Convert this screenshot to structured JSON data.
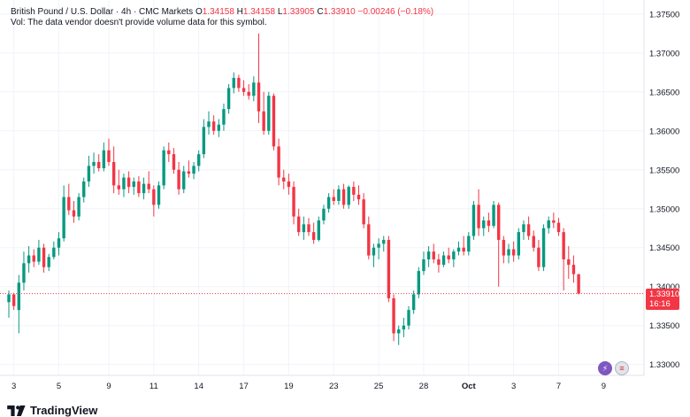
{
  "legend": {
    "title": "British Pound / U.S. Dollar · 4h · CMC Markets",
    "open_label": "O",
    "open": "1.34158",
    "high_label": "H",
    "high": "1.34158",
    "low_label": "L",
    "low": "1.33905",
    "close_label": "C",
    "close": "1.33910",
    "change": "−0.00246 (−0.18%)"
  },
  "volume_note": "Vol: The data vendor doesn't provide volume data for this symbol.",
  "current_price": {
    "value": "1.33910",
    "countdown": "16:16"
  },
  "brand": "TradingView",
  "colors": {
    "up": "#089981",
    "down": "#f23645",
    "grid": "#f0f3fa",
    "axis_text": "#131722"
  },
  "icons": {
    "lightning": "lightning-icon",
    "flag": "uk-us-flag-icon"
  },
  "chart_data": {
    "type": "candlestick",
    "symbol": "GBPUSD",
    "interval": "4h",
    "y_ticks": [
      "1.33000",
      "1.33500",
      "1.34000",
      "1.34500",
      "1.35000",
      "1.35500",
      "1.36000",
      "1.36500",
      "1.37000",
      "1.37500"
    ],
    "ylim": [
      1.3286,
      1.3768
    ],
    "x_ticks": [
      {
        "label": "3",
        "index": 1
      },
      {
        "label": "5",
        "index": 10
      },
      {
        "label": "9",
        "index": 20
      },
      {
        "label": "11",
        "index": 29
      },
      {
        "label": "14",
        "index": 38
      },
      {
        "label": "17",
        "index": 47
      },
      {
        "label": "19",
        "index": 56
      },
      {
        "label": "23",
        "index": 65
      },
      {
        "label": "25",
        "index": 74
      },
      {
        "label": "28",
        "index": 83
      },
      {
        "label": "Oct",
        "index": 92
      },
      {
        "label": "3",
        "index": 101
      },
      {
        "label": "7",
        "index": 110
      },
      {
        "label": "9",
        "index": 119
      }
    ],
    "candles": [
      [
        1.338,
        1.3395,
        1.336,
        1.339
      ],
      [
        1.339,
        1.3392,
        1.337,
        1.3375
      ],
      [
        1.337,
        1.3415,
        1.334,
        1.3405
      ],
      [
        1.3405,
        1.3445,
        1.3395,
        1.343
      ],
      [
        1.343,
        1.3452,
        1.3418,
        1.344
      ],
      [
        1.344,
        1.3448,
        1.3425,
        1.3432
      ],
      [
        1.3432,
        1.346,
        1.3428,
        1.345
      ],
      [
        1.345,
        1.3455,
        1.3418,
        1.3425
      ],
      [
        1.3425,
        1.3442,
        1.342,
        1.3438
      ],
      [
        1.3438,
        1.3458,
        1.3435,
        1.345
      ],
      [
        1.345,
        1.347,
        1.344,
        1.3462
      ],
      [
        1.3462,
        1.353,
        1.3458,
        1.3515
      ],
      [
        1.3515,
        1.3532,
        1.3492,
        1.3498
      ],
      [
        1.3498,
        1.351,
        1.3482,
        1.349
      ],
      [
        1.349,
        1.352,
        1.3485,
        1.3515
      ],
      [
        1.3515,
        1.354,
        1.3508,
        1.3535
      ],
      [
        1.3535,
        1.3568,
        1.3528,
        1.3555
      ],
      [
        1.3555,
        1.3572,
        1.3545,
        1.356
      ],
      [
        1.356,
        1.357,
        1.3548,
        1.3552
      ],
      [
        1.3552,
        1.3585,
        1.3548,
        1.3575
      ],
      [
        1.3575,
        1.359,
        1.3555,
        1.356
      ],
      [
        1.356,
        1.358,
        1.352,
        1.353
      ],
      [
        1.353,
        1.355,
        1.3518,
        1.3525
      ],
      [
        1.3525,
        1.3545,
        1.3515,
        1.354
      ],
      [
        1.354,
        1.3548,
        1.352,
        1.3528
      ],
      [
        1.3528,
        1.354,
        1.3518,
        1.3535
      ],
      [
        1.3535,
        1.3542,
        1.3515,
        1.352
      ],
      [
        1.352,
        1.354,
        1.3512,
        1.3532
      ],
      [
        1.3532,
        1.3548,
        1.352,
        1.3525
      ],
      [
        1.3525,
        1.353,
        1.349,
        1.3505
      ],
      [
        1.3505,
        1.3535,
        1.35,
        1.353
      ],
      [
        1.353,
        1.358,
        1.3525,
        1.3575
      ],
      [
        1.3575,
        1.3585,
        1.356,
        1.357
      ],
      [
        1.357,
        1.3578,
        1.3545,
        1.355
      ],
      [
        1.355,
        1.356,
        1.3518,
        1.3525
      ],
      [
        1.3525,
        1.3555,
        1.352,
        1.3548
      ],
      [
        1.3548,
        1.3562,
        1.354,
        1.3545
      ],
      [
        1.3545,
        1.356,
        1.3538,
        1.3555
      ],
      [
        1.3555,
        1.3575,
        1.3548,
        1.357
      ],
      [
        1.357,
        1.3615,
        1.3565,
        1.3605
      ],
      [
        1.3605,
        1.3625,
        1.3595,
        1.3612
      ],
      [
        1.3612,
        1.362,
        1.3595,
        1.36
      ],
      [
        1.36,
        1.3615,
        1.3592,
        1.3608
      ],
      [
        1.3608,
        1.3635,
        1.36,
        1.3628
      ],
      [
        1.3628,
        1.366,
        1.3622,
        1.3655
      ],
      [
        1.3655,
        1.3675,
        1.3648,
        1.3668
      ],
      [
        1.3668,
        1.3672,
        1.365,
        1.3655
      ],
      [
        1.3655,
        1.3665,
        1.3645,
        1.365
      ],
      [
        1.365,
        1.366,
        1.364,
        1.3645
      ],
      [
        1.3645,
        1.367,
        1.3638,
        1.3662
      ],
      [
        1.3662,
        1.3725,
        1.361,
        1.3625
      ],
      [
        1.3625,
        1.365,
        1.3595,
        1.36
      ],
      [
        1.36,
        1.365,
        1.3595,
        1.3645
      ],
      [
        1.3645,
        1.3648,
        1.3575,
        1.358
      ],
      [
        1.358,
        1.359,
        1.353,
        1.354
      ],
      [
        1.354,
        1.355,
        1.3525,
        1.3535
      ],
      [
        1.3535,
        1.3545,
        1.3518,
        1.3528
      ],
      [
        1.3528,
        1.3535,
        1.348,
        1.349
      ],
      [
        1.349,
        1.35,
        1.3465,
        1.347
      ],
      [
        1.347,
        1.349,
        1.346,
        1.348
      ],
      [
        1.348,
        1.3488,
        1.3465,
        1.347
      ],
      [
        1.347,
        1.3482,
        1.3455,
        1.346
      ],
      [
        1.346,
        1.349,
        1.3458,
        1.3485
      ],
      [
        1.3485,
        1.3505,
        1.348,
        1.35
      ],
      [
        1.35,
        1.352,
        1.3495,
        1.3515
      ],
      [
        1.3515,
        1.3525,
        1.3505,
        1.351
      ],
      [
        1.351,
        1.353,
        1.3505,
        1.3525
      ],
      [
        1.3525,
        1.3532,
        1.35,
        1.3505
      ],
      [
        1.3505,
        1.353,
        1.35,
        1.3528
      ],
      [
        1.3528,
        1.3535,
        1.351,
        1.3518
      ],
      [
        1.3518,
        1.353,
        1.3505,
        1.3512
      ],
      [
        1.3512,
        1.352,
        1.3475,
        1.348
      ],
      [
        1.348,
        1.349,
        1.3435,
        1.344
      ],
      [
        1.344,
        1.3455,
        1.3425,
        1.345
      ],
      [
        1.345,
        1.3462,
        1.3435,
        1.3455
      ],
      [
        1.3455,
        1.3465,
        1.3445,
        1.346
      ],
      [
        1.346,
        1.3465,
        1.338,
        1.3385
      ],
      [
        1.3385,
        1.339,
        1.333,
        1.334
      ],
      [
        1.334,
        1.335,
        1.3325,
        1.3345
      ],
      [
        1.3345,
        1.336,
        1.3335,
        1.335
      ],
      [
        1.335,
        1.3375,
        1.3345,
        1.337
      ],
      [
        1.337,
        1.3395,
        1.3365,
        1.339
      ],
      [
        1.339,
        1.3425,
        1.3385,
        1.342
      ],
      [
        1.342,
        1.3445,
        1.3415,
        1.3435
      ],
      [
        1.3435,
        1.3452,
        1.3425,
        1.3445
      ],
      [
        1.3445,
        1.3455,
        1.343,
        1.3435
      ],
      [
        1.3435,
        1.3442,
        1.3418,
        1.3428
      ],
      [
        1.3428,
        1.3445,
        1.3425,
        1.344
      ],
      [
        1.344,
        1.345,
        1.343,
        1.3435
      ],
      [
        1.3435,
        1.3448,
        1.3425,
        1.3445
      ],
      [
        1.3445,
        1.3458,
        1.344,
        1.345
      ],
      [
        1.345,
        1.3465,
        1.344,
        1.3445
      ],
      [
        1.3445,
        1.347,
        1.344,
        1.3465
      ],
      [
        1.3465,
        1.351,
        1.346,
        1.3505
      ],
      [
        1.3505,
        1.3525,
        1.3465,
        1.3475
      ],
      [
        1.3475,
        1.349,
        1.3465,
        1.3485
      ],
      [
        1.3485,
        1.3495,
        1.347,
        1.3478
      ],
      [
        1.3478,
        1.351,
        1.3475,
        1.3505
      ],
      [
        1.3505,
        1.3508,
        1.34,
        1.346
      ],
      [
        1.346,
        1.3465,
        1.343,
        1.344
      ],
      [
        1.344,
        1.3455,
        1.343,
        1.3448
      ],
      [
        1.3448,
        1.3458,
        1.3432,
        1.344
      ],
      [
        1.344,
        1.3475,
        1.3435,
        1.347
      ],
      [
        1.347,
        1.3485,
        1.346,
        1.348
      ],
      [
        1.348,
        1.349,
        1.346,
        1.3465
      ],
      [
        1.3465,
        1.3472,
        1.3445,
        1.345
      ],
      [
        1.345,
        1.346,
        1.342,
        1.3425
      ],
      [
        1.3425,
        1.348,
        1.342,
        1.3475
      ],
      [
        1.3475,
        1.349,
        1.3468,
        1.3485
      ],
      [
        1.3485,
        1.3495,
        1.3475,
        1.3482
      ],
      [
        1.3482,
        1.3488,
        1.3465,
        1.347
      ],
      [
        1.347,
        1.3475,
        1.3395,
        1.3435
      ],
      [
        1.3435,
        1.3452,
        1.341,
        1.3428
      ],
      [
        1.3428,
        1.344,
        1.3405,
        1.3416
      ],
      [
        1.3416,
        1.3416,
        1.339,
        1.3391
      ]
    ]
  }
}
